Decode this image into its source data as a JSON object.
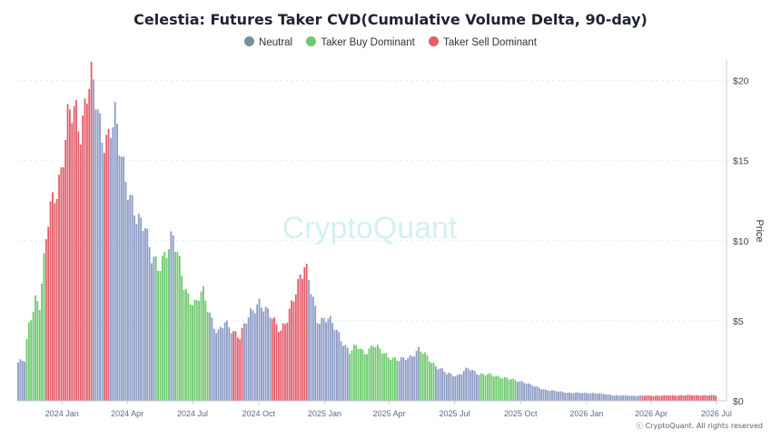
{
  "chart_data": {
    "type": "bar",
    "title": "Celestia: Futures Taker CVD(Cumulative Volume Delta, 90-day)",
    "ylabel": "Price",
    "ylim": [
      0,
      21
    ],
    "y_ticks": [
      "$0",
      "$5",
      "$10",
      "$15",
      "$20"
    ],
    "x_ticks": [
      "2024 Jan",
      "2024 Apr",
      "2024 Jul",
      "2024 Oct",
      "2025 Jan",
      "2025 Apr",
      "2025 Jul",
      "2025 Oct",
      "2026 Jan",
      "2026 Apr",
      "2026 Jul"
    ],
    "x_range": [
      "2023-11-01",
      "2026-07-15"
    ],
    "grid": true,
    "legend_position": "top-center",
    "series": [
      {
        "name": "Neutral",
        "color": "#7b8f99"
      },
      {
        "name": "Taker Buy Dominant",
        "color": "#6ec96e"
      },
      {
        "name": "Taker Sell Dominant",
        "color": "#e35d6a"
      }
    ],
    "bar_colors": {
      "Neutral": "#8c9bc5",
      "Taker Buy Dominant": "#6ec96e",
      "Taker Sell Dominant": "#e35d6a"
    },
    "price_points": [
      [
        "2023-11-01",
        2.4
      ],
      [
        "2023-11-10",
        2.5
      ],
      [
        "2023-11-15",
        4.5
      ],
      [
        "2023-11-25",
        6.5
      ],
      [
        "2023-12-01",
        6.0
      ],
      [
        "2023-12-08",
        9.0
      ],
      [
        "2023-12-15",
        12.0
      ],
      [
        "2023-12-25",
        13.5
      ],
      [
        "2024-01-01",
        14.5
      ],
      [
        "2024-01-10",
        17.5
      ],
      [
        "2024-01-20",
        18.5
      ],
      [
        "2024-01-28",
        17.0
      ],
      [
        "2024-02-05",
        19.0
      ],
      [
        "2024-02-12",
        19.8
      ],
      [
        "2024-02-18",
        19.0
      ],
      [
        "2024-02-25",
        17.0
      ],
      [
        "2024-03-05",
        16.0
      ],
      [
        "2024-03-15",
        17.5
      ],
      [
        "2024-03-25",
        15.5
      ],
      [
        "2024-04-05",
        12.5
      ],
      [
        "2024-04-15",
        11.0
      ],
      [
        "2024-04-25",
        11.5
      ],
      [
        "2024-05-05",
        9.0
      ],
      [
        "2024-05-15",
        8.0
      ],
      [
        "2024-05-25",
        9.5
      ],
      [
        "2024-06-03",
        10.5
      ],
      [
        "2024-06-10",
        9.0
      ],
      [
        "2024-06-20",
        7.0
      ],
      [
        "2024-07-05",
        6.0
      ],
      [
        "2024-07-15",
        6.8
      ],
      [
        "2024-07-25",
        5.5
      ],
      [
        "2024-08-05",
        4.2
      ],
      [
        "2024-08-15",
        4.8
      ],
      [
        "2024-08-25",
        4.5
      ],
      [
        "2024-09-05",
        4.0
      ],
      [
        "2024-09-20",
        5.5
      ],
      [
        "2024-10-01",
        6.3
      ],
      [
        "2024-10-10",
        5.6
      ],
      [
        "2024-10-20",
        5.2
      ],
      [
        "2024-11-01",
        4.5
      ],
      [
        "2024-11-10",
        5.0
      ],
      [
        "2024-11-20",
        6.5
      ],
      [
        "2024-11-28",
        8.0
      ],
      [
        "2024-12-05",
        8.6
      ],
      [
        "2024-12-12",
        7.0
      ],
      [
        "2024-12-22",
        5.0
      ],
      [
        "2025-01-05",
        5.3
      ],
      [
        "2025-01-15",
        4.5
      ],
      [
        "2025-01-25",
        3.8
      ],
      [
        "2025-02-05",
        3.1
      ],
      [
        "2025-02-15",
        3.4
      ],
      [
        "2025-02-25",
        3.0
      ],
      [
        "2025-03-10",
        3.5
      ],
      [
        "2025-03-20",
        3.1
      ],
      [
        "2025-04-05",
        2.7
      ],
      [
        "2025-04-15",
        2.5
      ],
      [
        "2025-05-01",
        2.8
      ],
      [
        "2025-05-12",
        3.2
      ],
      [
        "2025-05-25",
        2.7
      ],
      [
        "2025-06-05",
        2.2
      ],
      [
        "2025-06-20",
        1.7
      ],
      [
        "2025-07-05",
        1.6
      ],
      [
        "2025-07-20",
        2.0
      ],
      [
        "2025-08-05",
        1.7
      ],
      [
        "2025-08-20",
        1.6
      ],
      [
        "2025-09-05",
        1.5
      ],
      [
        "2025-09-20",
        1.3
      ],
      [
        "2025-10-05",
        1.2
      ],
      [
        "2025-10-20",
        0.9
      ],
      [
        "2025-11-05",
        0.7
      ],
      [
        "2025-11-20",
        0.6
      ],
      [
        "2025-12-10",
        0.5
      ],
      [
        "2026-01-05",
        0.5
      ],
      [
        "2026-01-20",
        0.45
      ],
      [
        "2026-02-10",
        0.35
      ],
      [
        "2026-03-10",
        0.32
      ],
      [
        "2026-04-10",
        0.33
      ],
      [
        "2026-05-10",
        0.35
      ],
      [
        "2026-06-10",
        0.35
      ],
      [
        "2026-07-01",
        0.34
      ]
    ],
    "signal_segments": [
      [
        "2023-11-01",
        "Neutral"
      ],
      [
        "2023-11-12",
        "Taker Buy Dominant"
      ],
      [
        "2023-12-10",
        "Taker Sell Dominant"
      ],
      [
        "2024-02-12",
        "Neutral"
      ],
      [
        "2024-02-28",
        "Taker Sell Dominant"
      ],
      [
        "2024-03-08",
        "Neutral"
      ],
      [
        "2024-05-10",
        "Taker Buy Dominant"
      ],
      [
        "2024-06-01",
        "Neutral"
      ],
      [
        "2024-06-05",
        "Taker Buy Dominant"
      ],
      [
        "2024-07-25",
        "Neutral"
      ],
      [
        "2024-08-25",
        "Taker Sell Dominant"
      ],
      [
        "2024-09-10",
        "Neutral"
      ],
      [
        "2024-10-20",
        "Taker Sell Dominant"
      ],
      [
        "2024-12-10",
        "Neutral"
      ],
      [
        "2025-02-05",
        "Taker Buy Dominant"
      ],
      [
        "2025-04-15",
        "Neutral"
      ],
      [
        "2025-05-15",
        "Taker Buy Dominant"
      ],
      [
        "2025-06-05",
        "Neutral"
      ],
      [
        "2025-08-05",
        "Taker Buy Dominant"
      ],
      [
        "2025-09-25",
        "Neutral"
      ],
      [
        "2026-03-20",
        "Taker Sell Dominant"
      ]
    ]
  },
  "watermark": "CryptoQuant",
  "copyright": "ⓒ CryptoQuant. All rights reserved"
}
